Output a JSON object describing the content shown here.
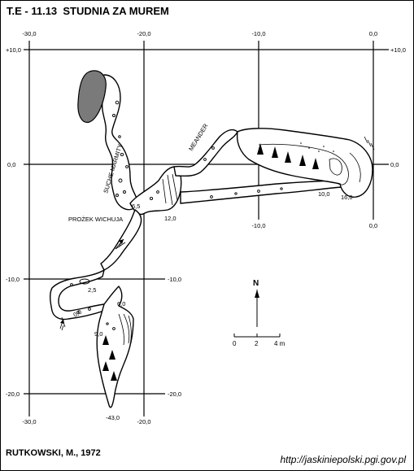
{
  "header": {
    "title": "T.E - 11.13  STUDNIA ZA MUREM"
  },
  "grid": {
    "x_top": [
      "-30,0",
      "-20,0",
      "-10,0",
      "0,0"
    ],
    "y_left": [
      "+10,0",
      "0,0",
      "-10,0",
      "-20,0"
    ],
    "y_right": [
      "+10,0",
      "0,0",
      "-10,0",
      "-20,0"
    ],
    "x_bottom": [
      "-30,0",
      "-20,0"
    ],
    "x_inner_bottom": [
      "-10,0",
      "0,0"
    ],
    "x_mid_bottom": [
      "-20,0"
    ]
  },
  "labels": {
    "suche_marmity": "SUCHE MARMITY",
    "meander": "MEANDER",
    "przezek": "PROŻEK WICHUJA"
  },
  "depths": {
    "d1": "6,5",
    "d2": "12,0",
    "d3": "10,0",
    "d4": "16,0",
    "d5": "2,5",
    "d6": "6,0",
    "d7": "9,0",
    "d8": "-43,0",
    "d9": "0,0"
  },
  "north": {
    "letter": "N"
  },
  "scale": {
    "zero": "0",
    "mid": "2",
    "end": "4 m"
  },
  "footer": {
    "author": "RUTKOWSKI, M., 1972",
    "source": "http://jaskiniepolski.pgi.gov.pl"
  },
  "colors": {
    "ink": "#000000",
    "paper": "#ffffff",
    "shade": "#7a7a7a"
  }
}
